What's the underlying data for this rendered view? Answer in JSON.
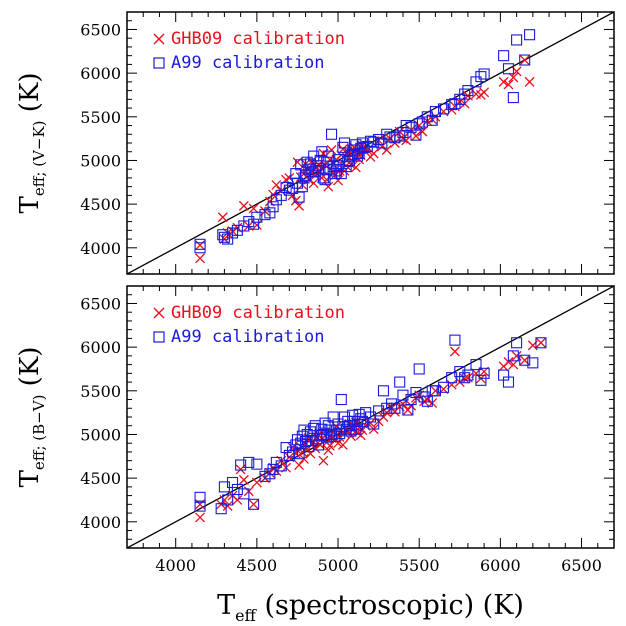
{
  "colors": {
    "ghb09": "#e8101c",
    "a99": "#1a1adc",
    "axis": "#000000"
  },
  "chart_data": [
    {
      "type": "scatter",
      "panel": "top",
      "ylabel_main": "T",
      "ylabel_sub": "eff; (V−K)",
      "ylabel_unit": "(K)",
      "xlim": [
        3700,
        6700
      ],
      "ylim": [
        3700,
        6700
      ],
      "x_ticks": [
        4000,
        4500,
        5000,
        5500,
        6000,
        6500
      ],
      "y_ticks": [
        4000,
        4500,
        5000,
        5500,
        6000,
        6500
      ],
      "show_x_tick_labels": false,
      "identity_line": true,
      "legend_position": "top-left",
      "legend": [
        {
          "name": "GHB09 calibration",
          "marker": "cross",
          "color": "#e8101c"
        },
        {
          "name": "A99 calibration",
          "marker": "square",
          "color": "#1a1adc"
        }
      ],
      "x": [
        4150,
        4150,
        4290,
        4300,
        4320,
        4350,
        4380,
        4420,
        4450,
        4480,
        4500,
        4550,
        4580,
        4600,
        4620,
        4650,
        4680,
        4700,
        4720,
        4740,
        4750,
        4760,
        4770,
        4780,
        4790,
        4800,
        4810,
        4820,
        4830,
        4840,
        4850,
        4860,
        4870,
        4880,
        4890,
        4900,
        4910,
        4920,
        4930,
        4940,
        4950,
        4960,
        4970,
        4980,
        4990,
        5000,
        5010,
        5020,
        5030,
        5040,
        5050,
        5060,
        5070,
        5080,
        5090,
        5100,
        5110,
        5120,
        5130,
        5140,
        5150,
        5160,
        5180,
        5200,
        5220,
        5250,
        5270,
        5300,
        5320,
        5350,
        5380,
        5400,
        5420,
        5450,
        5480,
        5500,
        5520,
        5550,
        5580,
        5600,
        5650,
        5700,
        5720,
        5750,
        5780,
        5800,
        5850,
        5880,
        5900,
        6020,
        6050,
        6080,
        6100,
        6150,
        6180
      ],
      "series": [
        {
          "name": "GHB09 calibration",
          "values": [
            4030,
            3880,
            4350,
            4100,
            4170,
            4190,
            4230,
            4480,
            4250,
            4450,
            4260,
            4420,
            4530,
            4610,
            4720,
            4650,
            4780,
            4800,
            4600,
            4540,
            4980,
            4480,
            4810,
            4720,
            4850,
            4960,
            4900,
            4780,
            4870,
            4990,
            4740,
            4830,
            4920,
            4950,
            4870,
            4800,
            5080,
            4950,
            4780,
            4700,
            5010,
            5120,
            4870,
            4830,
            5010,
            4770,
            4880,
            5060,
            5130,
            4880,
            4940,
            5100,
            5030,
            4950,
            5120,
            5150,
            4920,
            5070,
            5010,
            5060,
            5170,
            5120,
            5120,
            5040,
            5080,
            5230,
            5160,
            5120,
            5250,
            5200,
            5330,
            5250,
            5230,
            5350,
            5280,
            5400,
            5330,
            5450,
            5470,
            5500,
            5560,
            5580,
            5620,
            5670,
            5650,
            5740,
            5760,
            5750,
            5780,
            5900,
            5870,
            5950,
            6020,
            6150,
            5900
          ]
        },
        {
          "name": "A99 calibration",
          "values": [
            4040,
            4000,
            4150,
            4120,
            4100,
            4170,
            4200,
            4250,
            4300,
            4270,
            4350,
            4380,
            4400,
            4470,
            4550,
            4600,
            4690,
            4660,
            4680,
            4850,
            4740,
            4580,
            4950,
            4700,
            4800,
            4830,
            4980,
            4900,
            4960,
            4870,
            5050,
            4870,
            4940,
            4910,
            5000,
            5100,
            4800,
            4780,
            4980,
            5050,
            4900,
            5300,
            4930,
            4850,
            4880,
            4940,
            5010,
            4850,
            5150,
            5200,
            4930,
            4990,
            5000,
            5060,
            5070,
            5120,
            5180,
            5050,
            5080,
            5140,
            5200,
            5150,
            5160,
            5220,
            5210,
            5240,
            5200,
            5300,
            5270,
            5260,
            5280,
            5320,
            5400,
            5380,
            5290,
            5420,
            5440,
            5500,
            5460,
            5560,
            5590,
            5640,
            5650,
            5700,
            5760,
            5800,
            5900,
            5960,
            5990,
            6200,
            6050,
            5720,
            6380,
            6150,
            6440
          ]
        }
      ]
    },
    {
      "type": "scatter",
      "panel": "bottom",
      "xlabel_main": "T",
      "xlabel_sub": "eff",
      "xlabel_rest": " (spectroscopic) (K)",
      "ylabel_main": "T",
      "ylabel_sub": "eff; (B−V)",
      "ylabel_unit": "(K)",
      "xlim": [
        3700,
        6700
      ],
      "ylim": [
        3700,
        6700
      ],
      "x_ticks": [
        4000,
        4500,
        5000,
        5500,
        6000,
        6500
      ],
      "y_ticks": [
        4000,
        4500,
        5000,
        5500,
        6000,
        6500
      ],
      "show_x_tick_labels": true,
      "identity_line": true,
      "legend_position": "top-left",
      "legend": [
        {
          "name": "GHB09 calibration",
          "marker": "cross",
          "color": "#e8101c"
        },
        {
          "name": "A99 calibration",
          "marker": "square",
          "color": "#1a1adc"
        }
      ],
      "x": [
        4150,
        4150,
        4280,
        4300,
        4320,
        4350,
        4380,
        4400,
        4420,
        4450,
        4480,
        4500,
        4550,
        4580,
        4600,
        4620,
        4650,
        4680,
        4700,
        4720,
        4740,
        4750,
        4760,
        4770,
        4780,
        4790,
        4800,
        4810,
        4820,
        4830,
        4840,
        4850,
        4860,
        4870,
        4880,
        4890,
        4900,
        4910,
        4920,
        4930,
        4940,
        4950,
        4960,
        4970,
        4980,
        4990,
        5000,
        5010,
        5020,
        5030,
        5040,
        5050,
        5060,
        5070,
        5080,
        5090,
        5100,
        5110,
        5120,
        5130,
        5140,
        5150,
        5170,
        5200,
        5220,
        5250,
        5280,
        5300,
        5330,
        5350,
        5380,
        5400,
        5430,
        5450,
        5480,
        5500,
        5530,
        5550,
        5580,
        5600,
        5650,
        5700,
        5720,
        5750,
        5780,
        5800,
        5850,
        5880,
        5900,
        6020,
        6050,
        6080,
        6100,
        6150,
        6200,
        6250
      ],
      "series": [
        {
          "name": "GHB09 calibration",
          "values": [
            4050,
            4200,
            4200,
            4250,
            4180,
            4300,
            4250,
            4600,
            4480,
            4350,
            4200,
            4450,
            4500,
            4560,
            4620,
            4580,
            4700,
            4620,
            4740,
            4850,
            4780,
            4820,
            4650,
            4860,
            4800,
            4720,
            4890,
            4840,
            4960,
            4780,
            4890,
            4910,
            4840,
            4970,
            5000,
            4880,
            4950,
            4700,
            4990,
            4910,
            4820,
            4870,
            4960,
            5020,
            4940,
            5090,
            4900,
            4970,
            5050,
            4880,
            5010,
            5060,
            5030,
            5120,
            4980,
            5050,
            5100,
            5140,
            5020,
            5080,
            4990,
            5050,
            5100,
            5130,
            5060,
            5150,
            5200,
            5250,
            5300,
            5260,
            5320,
            5350,
            5280,
            5330,
            5420,
            5450,
            5380,
            5400,
            5360,
            5500,
            5520,
            5570,
            5950,
            5600,
            5640,
            5650,
            5700,
            5640,
            5720,
            5780,
            5830,
            5800,
            5900,
            5850,
            6020,
            6050
          ]
        },
        {
          "name": "A99 calibration",
          "values": [
            4280,
            4180,
            4150,
            4400,
            4250,
            4450,
            4370,
            4650,
            4320,
            4680,
            4200,
            4660,
            4520,
            4550,
            4600,
            4680,
            4640,
            4850,
            4760,
            4800,
            4880,
            4940,
            4780,
            4900,
            4980,
            5050,
            4920,
            5000,
            4860,
            5030,
            4930,
            5070,
            5100,
            4950,
            4880,
            4990,
            5060,
            5000,
            5130,
            4970,
            5100,
            5050,
            5000,
            5200,
            4980,
            5050,
            5120,
            5010,
            5400,
            5090,
            5200,
            5060,
            5150,
            5100,
            5040,
            5220,
            5150,
            5060,
            5110,
            5230,
            5180,
            5150,
            5250,
            5200,
            5120,
            5270,
            5500,
            5300,
            5350,
            5300,
            5600,
            5450,
            5280,
            5400,
            5480,
            5750,
            5430,
            5380,
            5500,
            5500,
            5540,
            5650,
            6080,
            5720,
            5650,
            5680,
            5800,
            5620,
            5700,
            5680,
            5600,
            5900,
            6050,
            5850,
            5820,
            6050
          ]
        }
      ]
    }
  ]
}
